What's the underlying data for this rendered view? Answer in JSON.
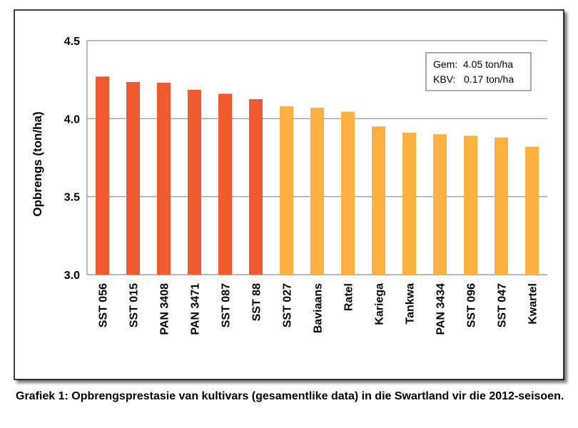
{
  "chart_data": {
    "type": "bar",
    "title": "",
    "xlabel": "",
    "ylabel": "Opbrengs (ton/ha)",
    "ylim": [
      3.0,
      4.5
    ],
    "yticks": [
      "3.0",
      "3.5",
      "4.0",
      "4.5"
    ],
    "grid": true,
    "categories": [
      "SST 056",
      "SST 015",
      "PAN 3408",
      "PAN 3471",
      "SST 087",
      "SST 88",
      "SST 027",
      "Baviaans",
      "Ratel",
      "Kariega",
      "Tankwa",
      "PAN 3434",
      "SST 096",
      "SST 047",
      "Kwartel"
    ],
    "values": [
      4.27,
      4.235,
      4.23,
      4.185,
      4.16,
      4.125,
      4.08,
      4.07,
      4.045,
      3.95,
      3.91,
      3.9,
      3.89,
      3.88,
      3.82
    ],
    "bar_groups": [
      "a",
      "a",
      "a",
      "a",
      "a",
      "a",
      "b",
      "b",
      "b",
      "b",
      "b",
      "b",
      "b",
      "b",
      "b"
    ],
    "colors": {
      "a": "#f05a30",
      "b": "#fbb040"
    },
    "stats_box": {
      "line1": "Gem:  4.05 ton/ha",
      "line2": "KBV:   0.17 ton/ha"
    }
  },
  "caption": "Grafiek 1: Opbrengsprestasie van kultivars (gesamentlike data) in die Swartland vir die 2012-seisoen."
}
